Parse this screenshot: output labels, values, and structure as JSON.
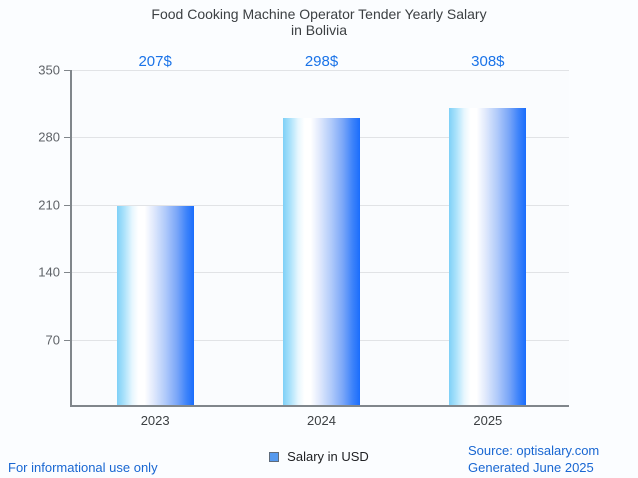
{
  "header": {
    "title_line1": "Food Cooking Machine Operator Tender Yearly Salary",
    "title_line2": "in Bolivia"
  },
  "legend": {
    "label": "Salary in USD"
  },
  "footer": {
    "left_note": "For informational use only",
    "source": "Source: optisalary.com",
    "generated": "Generated June 2025"
  },
  "colors": {
    "value_label": "#1a73e8",
    "footer_text": "#1967d2",
    "axis_line": "#80868b",
    "gridline": "#e1e3e6",
    "tick_text": "#5f6368",
    "title_text": "#3c4043",
    "legend_marker_fill": "#5599ee",
    "bar_gradient_left": "#7ed0f7",
    "bar_gradient_mid": "#ffffff",
    "bar_gradient_right": "#1a6dfc"
  },
  "chart_data": {
    "type": "bar",
    "title": "Food Cooking Machine Operator Tender Yearly Salary in Bolivia",
    "categories": [
      "2023",
      "2024",
      "2025"
    ],
    "values": [
      207,
      298,
      308
    ],
    "value_labels": [
      "207$",
      "298$",
      "308$"
    ],
    "series": [
      {
        "name": "Salary in USD",
        "values": [
          207,
          298,
          308
        ]
      }
    ],
    "xlabel": "",
    "ylabel": "",
    "ylim": [
      0,
      350
    ],
    "yticks": [
      350,
      280,
      210,
      140,
      70
    ],
    "grid": "horizontal",
    "legend_position": "bottom"
  }
}
